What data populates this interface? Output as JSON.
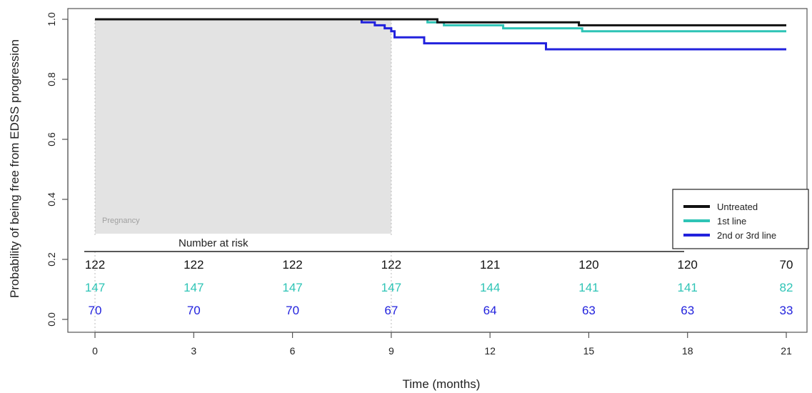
{
  "chart_data": {
    "type": "line",
    "subtype": "kaplan-meier step curves",
    "xlabel": "Time (months)",
    "ylabel": "Probability of being free from EDSS progression",
    "xlim": [
      0,
      21
    ],
    "ylim": [
      0,
      1.0
    ],
    "xticks": [
      0,
      3,
      6,
      9,
      12,
      15,
      18,
      21
    ],
    "yticks": [
      "0.0",
      "0.2",
      "0.4",
      "0.6",
      "0.8",
      "1.0"
    ],
    "shaded_region": {
      "label": "Pregnancy",
      "x_from": 0,
      "x_to": 9,
      "color": "#e3e3e3"
    },
    "series": [
      {
        "name": "Untreated",
        "color": "#111111",
        "x": [
          0,
          10.4,
          14.7,
          21
        ],
        "y": [
          1.0,
          0.99,
          0.98,
          0.98
        ]
      },
      {
        "name": "1st line",
        "color": "#2ec4b6",
        "x": [
          0,
          10.1,
          10.6,
          12.4,
          14.8,
          21
        ],
        "y": [
          1.0,
          0.99,
          0.98,
          0.97,
          0.96,
          0.96
        ]
      },
      {
        "name": "2nd or 3rd line",
        "color": "#2222dd",
        "x": [
          0,
          8.1,
          8.5,
          8.8,
          9.0,
          9.1,
          10.0,
          13.7,
          21
        ],
        "y": [
          1.0,
          0.99,
          0.98,
          0.97,
          0.96,
          0.94,
          0.92,
          0.9,
          0.9
        ]
      }
    ],
    "legend_position": "right",
    "risk_table": {
      "title": "Number at risk",
      "rows": [
        {
          "color": "#111111",
          "values": [
            "122",
            "122",
            "122",
            "122",
            "121",
            "120",
            "120",
            "70"
          ]
        },
        {
          "color": "#2ec4b6",
          "values": [
            "147",
            "147",
            "147",
            "147",
            "144",
            "141",
            "141",
            "82"
          ]
        },
        {
          "color": "#2222dd",
          "values": [
            "70",
            "70",
            "70",
            "67",
            "64",
            "63",
            "63",
            "33"
          ]
        }
      ]
    }
  }
}
